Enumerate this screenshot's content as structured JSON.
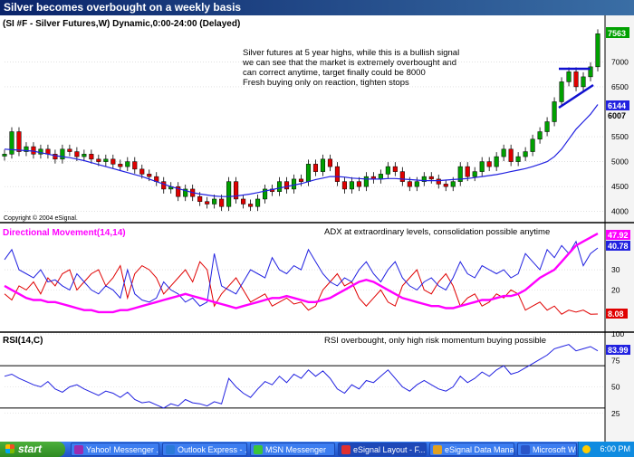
{
  "window": {
    "title": "Silver becomes overbought on a weekly basis"
  },
  "price_panel": {
    "header": "(SI #F - Silver Futures,W) Dynamic,0:00-24:00 (Delayed)",
    "annotation": [
      "Silver futures at 5 year highs, while this is a bullish signal",
      "we can see that the market is extremely overbought and",
      "can correct anytime, target finally could be 8000",
      "Fresh buying only on reaction, tighten stops"
    ],
    "copyright": "Copyright © 2004 eSignal.",
    "last_price": "7563",
    "ma_value": "6144",
    "ma2_value": "6007"
  },
  "dmi_panel": {
    "header": "Directional Movement(14,14)",
    "annotation": "ADX at extraordinary levels, consolidation possible anytime",
    "adx_value": "47.92",
    "plus_di_value": "40.78",
    "minus_di_value": "8.08"
  },
  "rsi_panel": {
    "header": "RSI(14,C)",
    "annotation": "RSI overbought, only high risk momentum buying possible",
    "rsi_value": "83.99"
  },
  "colors": {
    "title_bg": "#0a246a",
    "price_up": "#00a000",
    "price_down": "#e00000",
    "moving_average": "#2020e0",
    "adx": "#ff00ff",
    "plus_di": "#2020e0",
    "minus_di": "#e00000",
    "rsi": "#2020e0"
  },
  "chart_data": [
    {
      "type": "candlestick",
      "title": "(SI #F - Silver Futures,W) Dynamic,0:00-24:00 (Delayed)",
      "ylim": [
        3850,
        7750
      ],
      "y_ticks": [
        4000,
        4500,
        5000,
        5500,
        6000,
        6500,
        7000,
        7500
      ],
      "closes": [
        5150,
        5600,
        5200,
        5300,
        5150,
        5250,
        5150,
        5050,
        5250,
        5200,
        5100,
        5150,
        5050,
        5000,
        5050,
        4950,
        4900,
        5000,
        4850,
        4750,
        4700,
        4600,
        4450,
        4500,
        4300,
        4450,
        4300,
        4200,
        4150,
        4250,
        4100,
        4600,
        4250,
        4150,
        4100,
        4250,
        4450,
        4400,
        4600,
        4450,
        4650,
        4600,
        4950,
        4800,
        5050,
        4900,
        4600,
        4450,
        4600,
        4500,
        4700,
        4650,
        4750,
        4900,
        4800,
        4600,
        4500,
        4600,
        4700,
        4650,
        4550,
        4500,
        4600,
        4900,
        4700,
        4800,
        5000,
        4900,
        5100,
        5250,
        5000,
        5100,
        5200,
        5450,
        5600,
        5800,
        6200,
        6600,
        6800,
        6500,
        6700,
        6900,
        7563
      ],
      "moving_average": [
        5250,
        5240,
        5230,
        5220,
        5210,
        5180,
        5150,
        5120,
        5100,
        5080,
        5050,
        5020,
        4980,
        4940,
        4900,
        4860,
        4820,
        4780,
        4740,
        4700,
        4650,
        4600,
        4550,
        4500,
        4460,
        4420,
        4380,
        4350,
        4330,
        4310,
        4300,
        4300,
        4310,
        4330,
        4350,
        4380,
        4410,
        4440,
        4470,
        4500,
        4530,
        4560,
        4600,
        4640,
        4670,
        4700,
        4700,
        4690,
        4670,
        4660,
        4650,
        4650,
        4650,
        4660,
        4660,
        4650,
        4640,
        4630,
        4620,
        4620,
        4620,
        4630,
        4640,
        4650,
        4660,
        4680,
        4700,
        4720,
        4740,
        4770,
        4800,
        4830,
        4860,
        4900,
        4950,
        5000,
        5100,
        5250,
        5450,
        5650,
        5800,
        5950,
        6144
      ],
      "last_value": 7563
    },
    {
      "type": "line",
      "title": "Directional Movement(14,14)",
      "ylim": [
        0,
        52
      ],
      "y_ticks": [
        10,
        20,
        30,
        40,
        50
      ],
      "series": [
        {
          "name": "ADX",
          "values": [
            22,
            20,
            18,
            16,
            15,
            15,
            14,
            14,
            13,
            12,
            11,
            10,
            10,
            9,
            9,
            9,
            10,
            10,
            11,
            12,
            13,
            14,
            15,
            16,
            17,
            18,
            17,
            16,
            15,
            14,
            13,
            12,
            11,
            12,
            13,
            14,
            15,
            16,
            16,
            17,
            16,
            15,
            14,
            14,
            15,
            16,
            18,
            20,
            22,
            24,
            25,
            24,
            22,
            20,
            18,
            16,
            15,
            14,
            13,
            12,
            12,
            11,
            11,
            12,
            13,
            14,
            15,
            15,
            16,
            17,
            17,
            18,
            20,
            23,
            26,
            28,
            30,
            34,
            38,
            42,
            44,
            46,
            47.92
          ]
        },
        {
          "name": "+DI",
          "values": [
            35,
            40,
            30,
            28,
            26,
            30,
            24,
            25,
            22,
            20,
            28,
            24,
            20,
            18,
            22,
            20,
            16,
            30,
            18,
            15,
            14,
            16,
            24,
            20,
            18,
            14,
            16,
            12,
            14,
            38,
            22,
            20,
            18,
            24,
            30,
            28,
            26,
            36,
            30,
            28,
            32,
            30,
            40,
            34,
            28,
            24,
            22,
            26,
            24,
            30,
            34,
            28,
            24,
            30,
            34,
            26,
            22,
            20,
            24,
            26,
            22,
            20,
            26,
            34,
            28,
            26,
            32,
            30,
            28,
            30,
            26,
            28,
            38,
            34,
            30,
            40,
            36,
            42,
            38,
            44,
            32,
            38,
            40.78
          ]
        },
        {
          "name": "-DI",
          "values": [
            18,
            15,
            22,
            20,
            24,
            18,
            26,
            22,
            28,
            30,
            20,
            24,
            28,
            30,
            22,
            26,
            32,
            16,
            28,
            32,
            30,
            26,
            18,
            22,
            26,
            30,
            24,
            34,
            30,
            12,
            18,
            22,
            26,
            20,
            14,
            16,
            18,
            12,
            14,
            16,
            13,
            14,
            10,
            12,
            20,
            24,
            28,
            22,
            24,
            16,
            12,
            16,
            20,
            14,
            12,
            22,
            26,
            30,
            20,
            18,
            24,
            28,
            22,
            12,
            16,
            18,
            12,
            14,
            18,
            16,
            20,
            18,
            10,
            12,
            14,
            10,
            12,
            8,
            10,
            9,
            10,
            8,
            8.08
          ]
        }
      ]
    },
    {
      "type": "line",
      "title": "RSI(14,C)",
      "ylim": [
        0,
        100
      ],
      "y_ticks": [
        25,
        50,
        75,
        100
      ],
      "reference_lines": [
        30,
        70
      ],
      "series": [
        {
          "name": "RSI",
          "values": [
            60,
            62,
            58,
            55,
            52,
            50,
            55,
            48,
            45,
            50,
            52,
            48,
            45,
            42,
            46,
            44,
            40,
            45,
            38,
            35,
            36,
            33,
            30,
            34,
            32,
            38,
            35,
            34,
            32,
            36,
            34,
            58,
            50,
            44,
            40,
            48,
            55,
            52,
            60,
            54,
            62,
            58,
            66,
            60,
            65,
            58,
            48,
            44,
            52,
            48,
            56,
            54,
            60,
            66,
            58,
            50,
            46,
            52,
            56,
            52,
            48,
            46,
            50,
            60,
            54,
            58,
            64,
            60,
            66,
            70,
            62,
            64,
            68,
            72,
            76,
            80,
            86,
            88,
            90,
            84,
            86,
            88,
            83.99
          ]
        }
      ]
    }
  ],
  "taskbar": {
    "start_label": "start",
    "items": [
      {
        "label": "Yahoo! Messenger ...",
        "icon": "yahoo-messenger-icon",
        "color": "#9b2bb0"
      },
      {
        "label": "Outlook Express - ...",
        "icon": "outlook-express-icon",
        "color": "#2a7ad8"
      },
      {
        "label": "MSN Messenger",
        "icon": "msn-messenger-icon",
        "color": "#3ac43a"
      },
      {
        "label": "eSignal Layout - F...",
        "icon": "esignal-icon",
        "color": "#e03030"
      },
      {
        "label": "eSignal Data Mana...",
        "icon": "esignal-data-icon",
        "color": "#e0a020"
      },
      {
        "label": "Microsoft Word - ...",
        "icon": "word-icon",
        "color": "#2a55c8"
      }
    ],
    "clock": "6:00 PM"
  }
}
